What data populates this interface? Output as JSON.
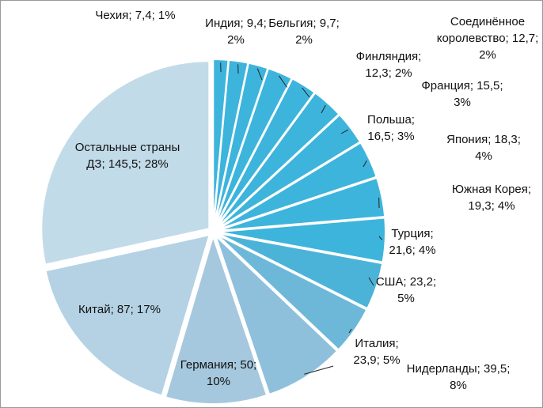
{
  "chart_data": {
    "type": "pie",
    "value_labels": [
      "Чехия; 7,4; 1%",
      "Индия; 9,4; 2%",
      "Бельгия; 9,7; 2%",
      "Финляндия; 12,3; 2%",
      "Соединённое королевство; 12,7; 2%",
      "Франция; 15,5; 3%",
      "Польша; 16,5; 3%",
      "Япония; 18,3; 4%",
      "Южная Корея; 19,3; 4%",
      "Турция; 21,6; 4%",
      "США; 23,2; 5%",
      "Италия; 23,9; 5%",
      "Нидерланды; 39,5; 8%",
      "Германия; 50; 10%",
      "Китай; 87; 17%",
      "Остальные страны ДЗ; 145,5; 28%"
    ],
    "values": [
      7.4,
      9.4,
      9.7,
      12.3,
      12.7,
      15.5,
      16.5,
      18.3,
      19.3,
      21.6,
      23.2,
      23.9,
      39.5,
      50,
      87,
      145.5
    ],
    "colors": [
      "#3db4dc",
      "#3db4dc",
      "#3db4dc",
      "#3db4dc",
      "#3db4dc",
      "#3db4dc",
      "#3db4dc",
      "#3db4dc",
      "#3db4dc",
      "#3db4dc",
      "#4cb3d8",
      "#6db8d8",
      "#8ec0dc",
      "#a6c8de",
      "#b4d2e4",
      "#c2dbe9"
    ]
  }
}
